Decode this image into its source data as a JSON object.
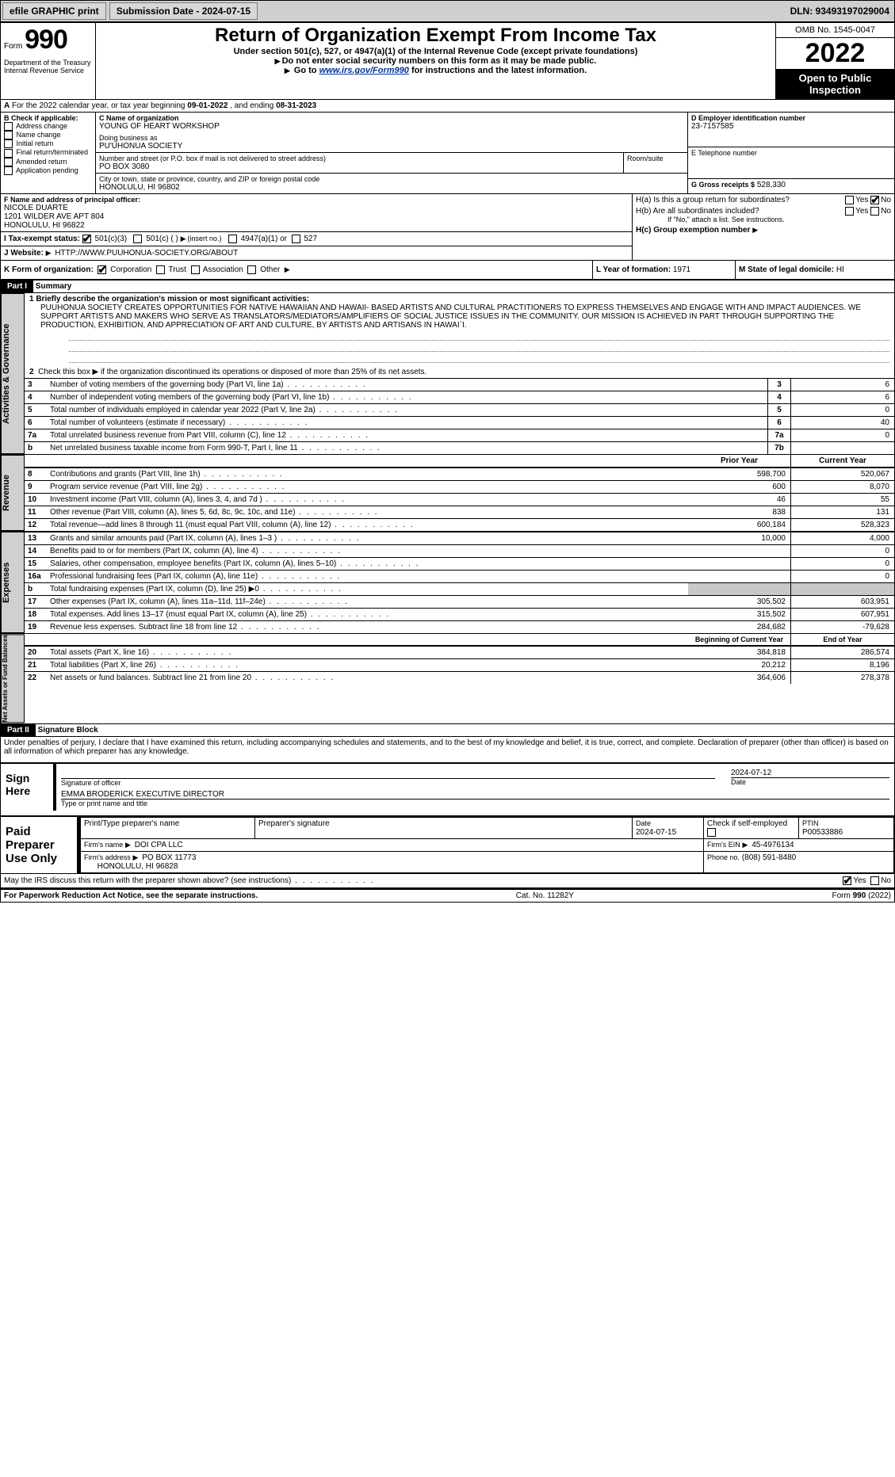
{
  "toolbar": {
    "efile": "efile GRAPHIC print",
    "submission": "Submission Date - 2024-07-15",
    "dln": "DLN: 93493197029004"
  },
  "header": {
    "form_word": "Form",
    "form_no": "990",
    "title": "Return of Organization Exempt From Income Tax",
    "subtitle": "Under section 501(c), 527, or 4947(a)(1) of the Internal Revenue Code (except private foundations)",
    "note1": "Do not enter social security numbers on this form as it may be made public.",
    "note2_pre": "Go to ",
    "note2_link": "www.irs.gov/Form990",
    "note2_post": " for instructions and the latest information.",
    "omb": "OMB No. 1545-0047",
    "year": "2022",
    "open": "Open to Public Inspection",
    "dept": "Department of the Treasury",
    "irs": "Internal Revenue Service"
  },
  "A": {
    "label": "A",
    "text": "For the 2022 calendar year, or tax year beginning",
    "begin": "09-01-2022",
    "mid": ", and ending",
    "end": "08-31-2023"
  },
  "B": {
    "label": "B Check if applicable:",
    "opts": [
      "Address change",
      "Name change",
      "Initial return",
      "Final return/terminated",
      "Amended return",
      "Application pending"
    ]
  },
  "C": {
    "label": "C Name of organization",
    "name": "YOUNG OF HEART WORKSHOP",
    "dba_label": "Doing business as",
    "dba": "PU'UHONUA SOCIETY",
    "street_label": "Number and street (or P.O. box if mail is not delivered to street address)",
    "room_label": "Room/suite",
    "street": "PO BOX 3080",
    "city_label": "City or town, state or province, country, and ZIP or foreign postal code",
    "city": "HONOLULU, HI  96802"
  },
  "D": {
    "label": "D Employer identification number",
    "value": "23-7157585"
  },
  "E": {
    "label": "E Telephone number",
    "value": ""
  },
  "G": {
    "label": "G Gross receipts $",
    "value": "528,330"
  },
  "F": {
    "label": "F Name and address of principal officer:",
    "name": "NICOLE DUARTE",
    "addr1": "1201 WILDER AVE APT 804",
    "addr2": "HONOLULU, HI  96822"
  },
  "H": {
    "a": "H(a)  Is this a group return for subordinates?",
    "b": "H(b)  Are all subordinates included?",
    "b_note": "If \"No,\" attach a list. See instructions.",
    "c": "H(c)  Group exemption number",
    "yes": "Yes",
    "no": "No"
  },
  "I": {
    "label": "I  Tax-exempt status:",
    "o1": "501(c)(3)",
    "o2": "501(c) (  )",
    "o2_hint": "(insert no.)",
    "o3": "4947(a)(1) or",
    "o4": "527"
  },
  "J": {
    "label": "J  Website:",
    "value": "HTTP://WWW.PUUHONUA-SOCIETY.ORG/ABOUT"
  },
  "K": {
    "label": "K Form of organization:",
    "opts": [
      "Corporation",
      "Trust",
      "Association",
      "Other"
    ]
  },
  "L": {
    "label": "L Year of formation:",
    "value": "1971"
  },
  "M": {
    "label": "M State of legal domicile:",
    "value": "HI"
  },
  "part1": {
    "hdr": "Part I",
    "title": "Summary",
    "line1_label": "1  Briefly describe the organization's mission or most significant activities:",
    "mission": "PUUHONUA SOCIETY CREATES OPPORTUNITIES FOR NATIVE HAWAIIAN AND HAWAII- BASED ARTISTS AND CULTURAL PRACTITIONERS TO EXPRESS THEMSELVES AND ENGAGE WITH AND IMPACT AUDIENCES. WE SUPPORT ARTISTS AND MAKERS WHO SERVE AS TRANSLATORS/MEDIATORS/AMPLIFIERS OF SOCIAL JUSTICE ISSUES IN THE COMMUNITY. OUR MISSION IS ACHIEVED IN PART THROUGH SUPPORTING THE PRODUCTION, EXHIBITION, AND APPRECIATION OF ART AND CULTURE, BY ARTISTS AND ARTISANS IN HAWAI`I.",
    "line2": "Check this box ▶  if the organization discontinued its operations or disposed of more than 25% of its net assets.",
    "rows_single": [
      {
        "num": "3",
        "desc": "Number of voting members of the governing body (Part VI, line 1a)",
        "box": "3",
        "val": "6"
      },
      {
        "num": "4",
        "desc": "Number of independent voting members of the governing body (Part VI, line 1b)",
        "box": "4",
        "val": "6"
      },
      {
        "num": "5",
        "desc": "Total number of individuals employed in calendar year 2022 (Part V, line 2a)",
        "box": "5",
        "val": "0"
      },
      {
        "num": "6",
        "desc": "Total number of volunteers (estimate if necessary)",
        "box": "6",
        "val": "40"
      },
      {
        "num": "7a",
        "desc": "Total unrelated business revenue from Part VIII, column (C), line 12",
        "box": "7a",
        "val": "0"
      },
      {
        "num": "b",
        "desc": "Net unrelated business taxable income from Form 990-T, Part I, line 11",
        "box": "7b",
        "val": ""
      }
    ],
    "col_headers": {
      "prior": "Prior Year",
      "curr": "Current Year",
      "boy": "Beginning of Current Year",
      "eoy": "End of Year"
    },
    "revenue": [
      {
        "num": "8",
        "desc": "Contributions and grants (Part VIII, line 1h)",
        "p": "598,700",
        "c": "520,067"
      },
      {
        "num": "9",
        "desc": "Program service revenue (Part VIII, line 2g)",
        "p": "600",
        "c": "8,070"
      },
      {
        "num": "10",
        "desc": "Investment income (Part VIII, column (A), lines 3, 4, and 7d )",
        "p": "46",
        "c": "55"
      },
      {
        "num": "11",
        "desc": "Other revenue (Part VIII, column (A), lines 5, 6d, 8c, 9c, 10c, and 11e)",
        "p": "838",
        "c": "131"
      },
      {
        "num": "12",
        "desc": "Total revenue—add lines 8 through 11 (must equal Part VIII, column (A), line 12)",
        "p": "600,184",
        "c": "528,323"
      }
    ],
    "expenses": [
      {
        "num": "13",
        "desc": "Grants and similar amounts paid (Part IX, column (A), lines 1–3 )",
        "p": "10,000",
        "c": "4,000"
      },
      {
        "num": "14",
        "desc": "Benefits paid to or for members (Part IX, column (A), line 4)",
        "p": "",
        "c": "0"
      },
      {
        "num": "15",
        "desc": "Salaries, other compensation, employee benefits (Part IX, column (A), lines 5–10)",
        "p": "",
        "c": "0"
      },
      {
        "num": "16a",
        "desc": "Professional fundraising fees (Part IX, column (A), line 11e)",
        "p": "",
        "c": "0"
      },
      {
        "num": "b",
        "desc": "Total fundraising expenses (Part IX, column (D), line 25) ▶0",
        "p": "__shade__",
        "c": "__shade__"
      },
      {
        "num": "17",
        "desc": "Other expenses (Part IX, column (A), lines 11a–11d, 11f–24e)",
        "p": "305,502",
        "c": "603,951"
      },
      {
        "num": "18",
        "desc": "Total expenses. Add lines 13–17 (must equal Part IX, column (A), line 25)",
        "p": "315,502",
        "c": "607,951"
      },
      {
        "num": "19",
        "desc": "Revenue less expenses. Subtract line 18 from line 12",
        "p": "284,682",
        "c": "-79,628"
      }
    ],
    "net": [
      {
        "num": "20",
        "desc": "Total assets (Part X, line 16)",
        "p": "384,818",
        "c": "286,574"
      },
      {
        "num": "21",
        "desc": "Total liabilities (Part X, line 26)",
        "p": "20,212",
        "c": "8,196"
      },
      {
        "num": "22",
        "desc": "Net assets or fund balances. Subtract line 21 from line 20",
        "p": "364,606",
        "c": "278,378"
      }
    ],
    "side_labels": {
      "gov": "Activities & Governance",
      "rev": "Revenue",
      "exp": "Expenses",
      "net": "Net Assets or Fund Balances"
    }
  },
  "part2": {
    "hdr": "Part II",
    "title": "Signature Block",
    "penalty": "Under penalties of perjury, I declare that I have examined this return, including accompanying schedules and statements, and to the best of my knowledge and belief, it is true, correct, and complete. Declaration of preparer (other than officer) is based on all information of which preparer has any knowledge.",
    "sign_here": "Sign Here",
    "sig_officer": "Signature of officer",
    "date_label": "Date",
    "date": "2024-07-12",
    "typed": "EMMA BRODERICK EXECUTIVE DIRECTOR",
    "typed_label": "Type or print name and title",
    "paid": "Paid Preparer Use Only",
    "pp_name_hdr": "Print/Type preparer's name",
    "pp_sig_hdr": "Preparer's signature",
    "pp_date": "2024-07-15",
    "pp_selfemp": "Check  if self-employed",
    "ptin_label": "PTIN",
    "ptin": "P00533886",
    "firm_name_label": "Firm's name",
    "firm_name": "DOI CPA LLC",
    "firm_ein_label": "Firm's EIN",
    "firm_ein": "45-4976134",
    "firm_addr_label": "Firm's address",
    "firm_addr": "PO BOX 11773",
    "firm_city": "HONOLULU, HI  96828",
    "phone_label": "Phone no.",
    "phone": "(808) 591-8480",
    "may_irs": "May the IRS discuss this return with the preparer shown above? (see instructions)",
    "yes": "Yes",
    "no": "No"
  },
  "footer": {
    "left": "For Paperwork Reduction Act Notice, see the separate instructions.",
    "cat": "Cat. No. 11282Y",
    "right": "Form 990 (2022)"
  }
}
